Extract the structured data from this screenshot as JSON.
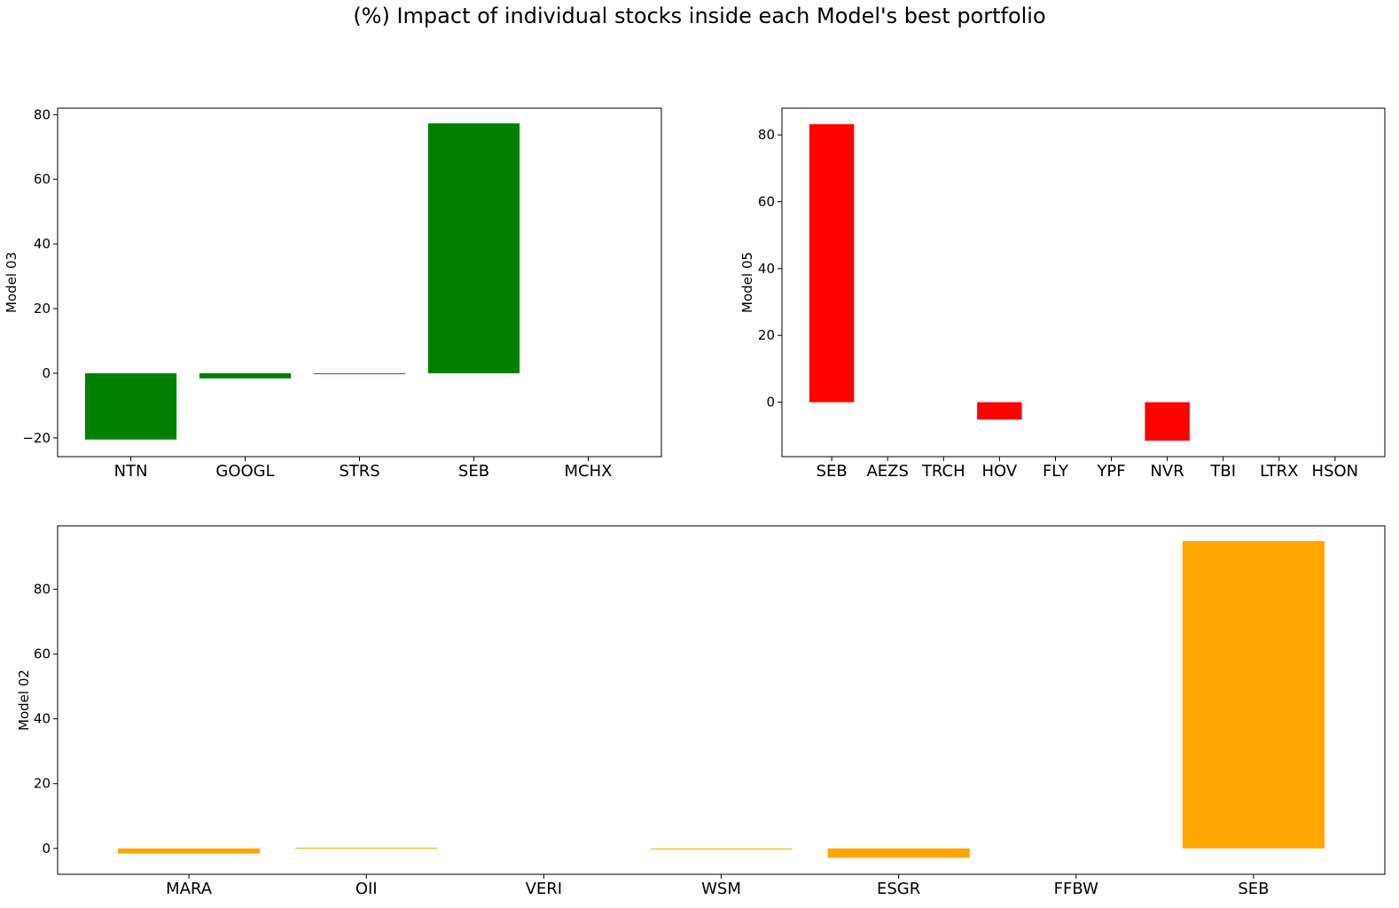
{
  "figure_title": "(%) Impact of individual stocks inside each Model's best portfolio",
  "chart_data": [
    {
      "type": "bar",
      "ylabel": "Model 03",
      "color": "#008000",
      "categories": [
        "NTN",
        "GOOGL",
        "STRS",
        "SEB",
        "MCHX"
      ],
      "values": [
        -20.5,
        -1.6,
        -0.2,
        77.3,
        0
      ],
      "ylim": [
        -25.8,
        82.0
      ],
      "yticks": [
        -20,
        0,
        20,
        40,
        60,
        80
      ],
      "ytick_labels": [
        "−20",
        "0",
        "20",
        "40",
        "60",
        "80"
      ]
    },
    {
      "type": "bar",
      "ylabel": "Model 05",
      "color": "#ff0000",
      "categories": [
        "SEB",
        "AEZS",
        "TRCH",
        "HOV",
        "FLY",
        "YPF",
        "NVR",
        "TBI",
        "LTRX",
        "HSON"
      ],
      "values": [
        83.2,
        0,
        0,
        -5.2,
        0,
        0,
        -11.5,
        0,
        0,
        0
      ],
      "ylim": [
        -16.3,
        88.0
      ],
      "yticks": [
        0,
        20,
        40,
        60,
        80
      ],
      "ytick_labels": [
        "0",
        "20",
        "40",
        "60",
        "80"
      ]
    },
    {
      "type": "bar",
      "ylabel": "Model 02",
      "color": "#ffa500",
      "categories": [
        "MARA",
        "OII",
        "VERI",
        "WSM",
        "ESGR",
        "FFBW",
        "SEB"
      ],
      "values": [
        -1.6,
        0.2,
        0,
        -0.2,
        -2.9,
        0,
        94.9
      ],
      "ylim": [
        -8.0,
        99.6
      ],
      "yticks": [
        0,
        20,
        40,
        60,
        80
      ],
      "ytick_labels": [
        "0",
        "20",
        "40",
        "60",
        "80"
      ]
    }
  ]
}
